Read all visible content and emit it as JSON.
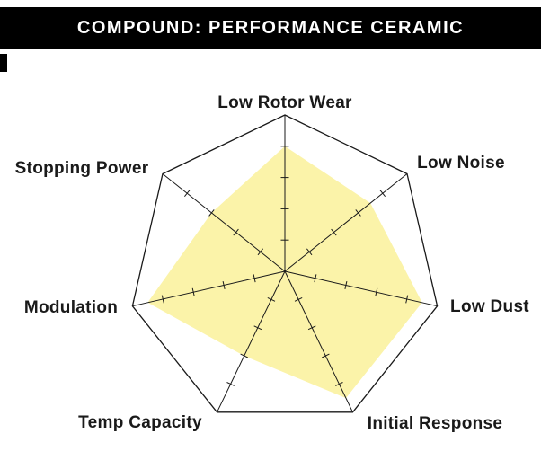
{
  "header": {
    "title": "COMPOUND: PERFORMANCE CERAMIC"
  },
  "colors": {
    "header_bg": "#000000",
    "header_text": "#ffffff"
  },
  "chart_data": {
    "type": "radar",
    "title": "COMPOUND: PERFORMANCE CERAMIC",
    "categories": [
      "Low Rotor Wear",
      "Low Noise",
      "Low Dust",
      "Initial Response",
      "Temp Capacity",
      "Modulation",
      "Stopping Power"
    ],
    "values": [
      4,
      3.5,
      4.5,
      4.5,
      3,
      4.5,
      3
    ],
    "rlim": [
      0,
      5
    ],
    "ticks_per_axis": 4,
    "grid": "spokes-with-tick-marks",
    "legend": "none",
    "fill_color": "#FBF3A9",
    "grid_color": "#1a1a1a",
    "label_color": "#1a1a1a"
  }
}
